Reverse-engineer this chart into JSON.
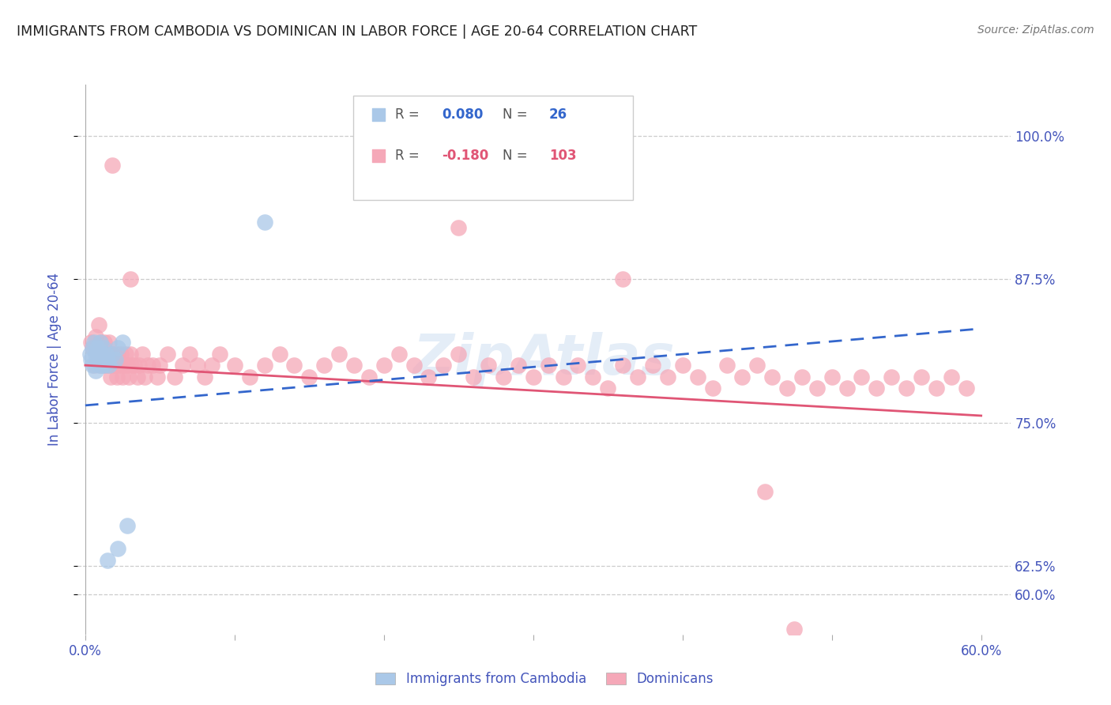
{
  "title": "IMMIGRANTS FROM CAMBODIA VS DOMINICAN IN LABOR FORCE | AGE 20-64 CORRELATION CHART",
  "source": "Source: ZipAtlas.com",
  "ylabel": "In Labor Force | Age 20-64",
  "ytick_values": [
    0.6,
    0.625,
    0.75,
    0.875,
    1.0
  ],
  "ytick_labels": [
    "60.0%",
    "62.5%",
    "75.0%",
    "87.5%",
    "100.0%"
  ],
  "xlim": [
    -0.005,
    0.62
  ],
  "ylim": [
    0.565,
    1.045
  ],
  "R_cambodia": 0.08,
  "N_cambodia": 26,
  "R_dominican": -0.18,
  "N_dominican": 103,
  "background_color": "#ffffff",
  "grid_color": "#cccccc",
  "cambodia_color": "#aac8e8",
  "dominican_color": "#f5a8b8",
  "cambodia_line_color": "#3366cc",
  "dominican_line_color": "#e05575",
  "watermark_color": "#c5d8ee",
  "title_color": "#222222",
  "axis_label_color": "#4455bb",
  "tick_color": "#4455bb",
  "xtick_positions": [
    0.0,
    0.6
  ],
  "xtick_labels": [
    "0.0%",
    "60.0%"
  ],
  "camb_x": [
    0.003,
    0.004,
    0.005,
    0.005,
    0.006,
    0.007,
    0.007,
    0.008,
    0.008,
    0.009,
    0.01,
    0.01,
    0.011,
    0.012,
    0.013,
    0.014,
    0.015,
    0.016,
    0.018,
    0.02,
    0.022,
    0.025,
    0.028,
    0.12,
    0.022,
    0.015
  ],
  "camb_y": [
    0.81,
    0.805,
    0.815,
    0.8,
    0.82,
    0.81,
    0.795,
    0.805,
    0.815,
    0.8,
    0.81,
    0.82,
    0.8,
    0.815,
    0.8,
    0.81,
    0.805,
    0.8,
    0.81,
    0.805,
    0.815,
    0.82,
    0.66,
    0.925,
    0.64,
    0.63
  ],
  "dom_x": [
    0.004,
    0.005,
    0.006,
    0.007,
    0.008,
    0.009,
    0.01,
    0.01,
    0.011,
    0.012,
    0.013,
    0.014,
    0.015,
    0.016,
    0.017,
    0.018,
    0.018,
    0.019,
    0.02,
    0.021,
    0.022,
    0.023,
    0.024,
    0.025,
    0.026,
    0.027,
    0.028,
    0.029,
    0.03,
    0.031,
    0.033,
    0.035,
    0.036,
    0.038,
    0.04,
    0.042,
    0.045,
    0.048,
    0.05,
    0.055,
    0.06,
    0.065,
    0.07,
    0.075,
    0.08,
    0.085,
    0.09,
    0.1,
    0.11,
    0.12,
    0.13,
    0.14,
    0.15,
    0.16,
    0.17,
    0.18,
    0.19,
    0.2,
    0.21,
    0.22,
    0.23,
    0.24,
    0.25,
    0.26,
    0.27,
    0.28,
    0.29,
    0.3,
    0.31,
    0.32,
    0.33,
    0.34,
    0.35,
    0.36,
    0.37,
    0.38,
    0.39,
    0.4,
    0.41,
    0.42,
    0.43,
    0.44,
    0.45,
    0.46,
    0.47,
    0.48,
    0.49,
    0.5,
    0.51,
    0.52,
    0.53,
    0.54,
    0.55,
    0.56,
    0.57,
    0.58,
    0.59,
    0.018,
    0.03,
    0.25,
    0.36,
    0.455,
    0.475
  ],
  "dom_y": [
    0.82,
    0.815,
    0.8,
    0.825,
    0.81,
    0.835,
    0.8,
    0.82,
    0.81,
    0.8,
    0.82,
    0.81,
    0.8,
    0.82,
    0.79,
    0.81,
    0.8,
    0.81,
    0.8,
    0.79,
    0.81,
    0.8,
    0.81,
    0.79,
    0.8,
    0.81,
    0.8,
    0.79,
    0.81,
    0.8,
    0.8,
    0.79,
    0.8,
    0.81,
    0.79,
    0.8,
    0.8,
    0.79,
    0.8,
    0.81,
    0.79,
    0.8,
    0.81,
    0.8,
    0.79,
    0.8,
    0.81,
    0.8,
    0.79,
    0.8,
    0.81,
    0.8,
    0.79,
    0.8,
    0.81,
    0.8,
    0.79,
    0.8,
    0.81,
    0.8,
    0.79,
    0.8,
    0.81,
    0.79,
    0.8,
    0.79,
    0.8,
    0.79,
    0.8,
    0.79,
    0.8,
    0.79,
    0.78,
    0.8,
    0.79,
    0.8,
    0.79,
    0.8,
    0.79,
    0.78,
    0.8,
    0.79,
    0.8,
    0.79,
    0.78,
    0.79,
    0.78,
    0.79,
    0.78,
    0.79,
    0.78,
    0.79,
    0.78,
    0.79,
    0.78,
    0.79,
    0.78,
    0.975,
    0.875,
    0.92,
    0.875,
    0.69,
    0.57
  ]
}
